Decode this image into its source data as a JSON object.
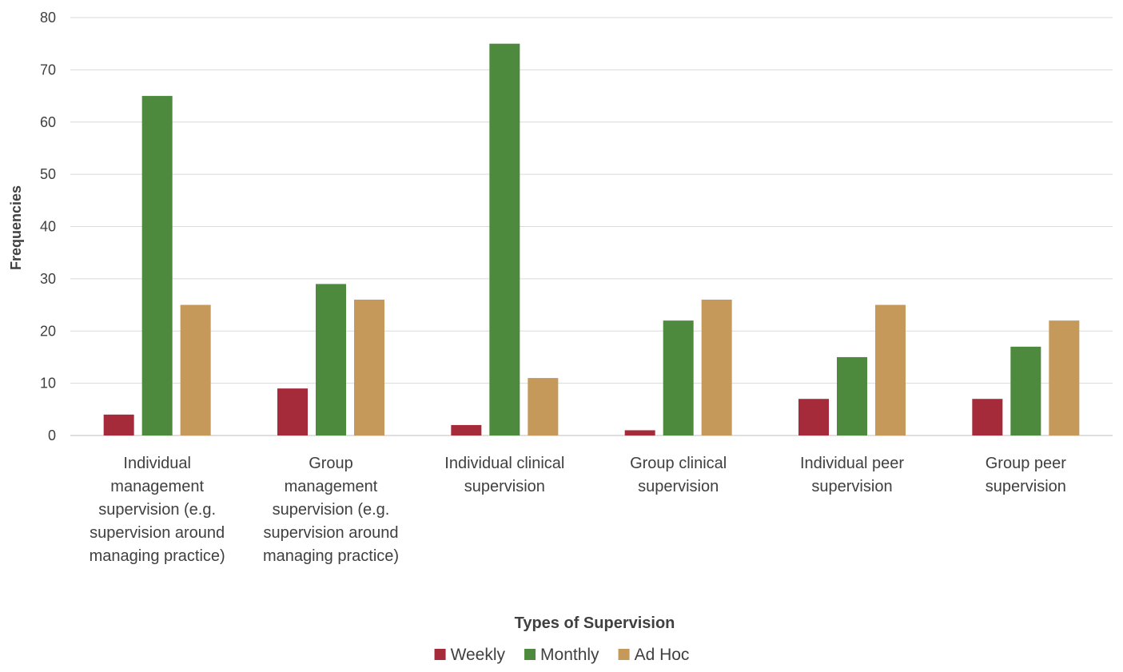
{
  "chart_data": {
    "type": "bar",
    "title": "",
    "xlabel": "Types of Supervision",
    "ylabel": "Frequencies",
    "ylim": [
      0,
      80
    ],
    "yticks": [
      0,
      10,
      20,
      30,
      40,
      50,
      60,
      70,
      80
    ],
    "grid": true,
    "legend_position": "bottom",
    "categories": [
      [
        "Individual",
        "management",
        "supervision (e.g.",
        "supervision around",
        "managing practice)"
      ],
      [
        "Group",
        "management",
        "supervision (e.g.",
        "supervision around",
        "managing practice)"
      ],
      [
        "Individual clinical",
        "supervision"
      ],
      [
        "Group clinical",
        "supervision"
      ],
      [
        "Individual peer",
        "supervision"
      ],
      [
        "Group peer",
        "supervision"
      ]
    ],
    "series": [
      {
        "name": "Weekly",
        "color": "#a52a3a",
        "values": [
          4,
          9,
          2,
          1,
          7,
          7
        ]
      },
      {
        "name": "Monthly",
        "color": "#4e8a3e",
        "values": [
          65,
          29,
          75,
          22,
          15,
          17
        ]
      },
      {
        "name": "Ad Hoc",
        "color": "#c4995a",
        "values": [
          25,
          26,
          11,
          26,
          25,
          22
        ]
      }
    ]
  }
}
